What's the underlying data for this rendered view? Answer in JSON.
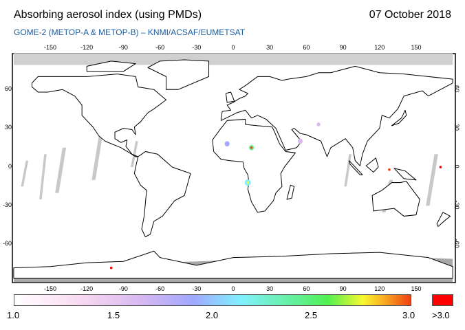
{
  "header": {
    "title": "Absorbing aerosol index (using PMDs)",
    "date": "07 October 2018",
    "subtitle": "GOME-2 (METOP-A & METOP-B)  –  KNMI/ACSAF/EUMETSAT"
  },
  "map": {
    "lon_ticks": [
      "-150",
      "-120",
      "-90",
      "-60",
      "-30",
      "0",
      "30",
      "60",
      "90",
      "120",
      "150"
    ],
    "lat_ticks": [
      "60",
      "30",
      "0",
      "-30",
      "-60"
    ],
    "colors": {
      "frame": "#000000",
      "polar_top": "#d0d0d0",
      "polar_bottom": "#a8a8a8",
      "swath_gap": "#c8c8c8"
    }
  },
  "colorbar": {
    "labels": [
      "1.0",
      "1.5",
      "2.0",
      "2.5",
      "3.0"
    ],
    "overflow_label": ">3.0",
    "overflow_color": "#ff0000"
  }
}
